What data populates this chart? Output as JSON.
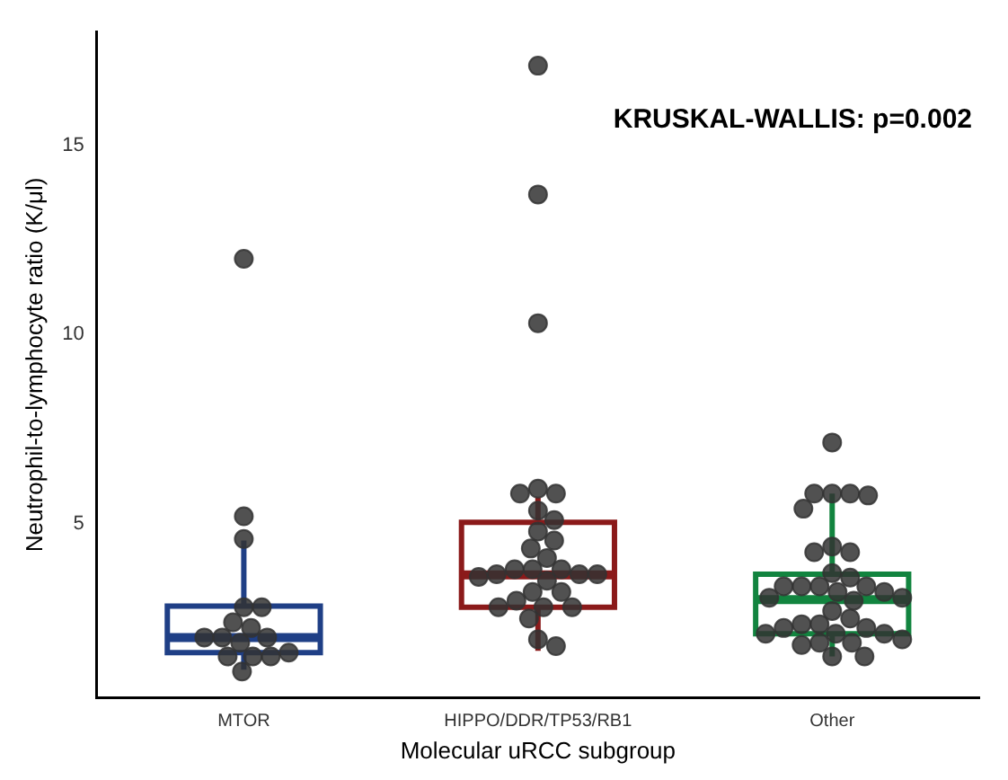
{
  "chart_data": {
    "type": "box",
    "xlabel": "Molecular uRCC subgroup",
    "ylabel": "Neutrophil-to-lymphocyte ratio (K/μl)",
    "annotations": [
      "KRUSKAL-WALLIS: p=0.002"
    ],
    "categories": [
      "MTOR",
      "HIPPO/DDR/TP53/RB1",
      "Other"
    ],
    "colors": [
      "#1f3f86",
      "#8b1a1a",
      "#12843f"
    ],
    "boxes": [
      {
        "low": 1.15,
        "q1": 1.6,
        "median": 2.0,
        "q3": 2.83,
        "high": 4.56
      },
      {
        "low": 1.65,
        "q1": 2.8,
        "median": 3.65,
        "q3": 5.04,
        "high": 5.7
      },
      {
        "low": 1.5,
        "q1": 2.1,
        "median": 3.0,
        "q3": 3.67,
        "high": 5.8
      }
    ],
    "series": [
      {
        "type": "scatter",
        "color": "#333333",
        "x": [
          "MTOR",
          "MTOR",
          "MTOR",
          "MTOR",
          "MTOR",
          "MTOR",
          "MTOR",
          "MTOR",
          "MTOR",
          "MTOR",
          "MTOR",
          "MTOR",
          "MTOR",
          "MTOR",
          "MTOR",
          "MTOR",
          "HIPPO/DDR/TP53/RB1",
          "HIPPO/DDR/TP53/RB1",
          "HIPPO/DDR/TP53/RB1",
          "HIPPO/DDR/TP53/RB1",
          "HIPPO/DDR/TP53/RB1",
          "HIPPO/DDR/TP53/RB1",
          "HIPPO/DDR/TP53/RB1",
          "HIPPO/DDR/TP53/RB1",
          "HIPPO/DDR/TP53/RB1",
          "HIPPO/DDR/TP53/RB1",
          "HIPPO/DDR/TP53/RB1",
          "HIPPO/DDR/TP53/RB1",
          "HIPPO/DDR/TP53/RB1",
          "HIPPO/DDR/TP53/RB1",
          "HIPPO/DDR/TP53/RB1",
          "HIPPO/DDR/TP53/RB1",
          "HIPPO/DDR/TP53/RB1",
          "HIPPO/DDR/TP53/RB1",
          "HIPPO/DDR/TP53/RB1",
          "HIPPO/DDR/TP53/RB1",
          "HIPPO/DDR/TP53/RB1",
          "HIPPO/DDR/TP53/RB1",
          "HIPPO/DDR/TP53/RB1",
          "HIPPO/DDR/TP53/RB1",
          "HIPPO/DDR/TP53/RB1",
          "HIPPO/DDR/TP53/RB1",
          "HIPPO/DDR/TP53/RB1",
          "HIPPO/DDR/TP53/RB1",
          "HIPPO/DDR/TP53/RB1",
          "Other",
          "Other",
          "Other",
          "Other",
          "Other",
          "Other",
          "Other",
          "Other",
          "Other",
          "Other",
          "Other",
          "Other",
          "Other",
          "Other",
          "Other",
          "Other",
          "Other",
          "Other",
          "Other",
          "Other",
          "Other",
          "Other",
          "Other",
          "Other",
          "Other",
          "Other",
          "Other",
          "Other",
          "Other",
          "Other",
          "Other",
          "Other",
          "Other",
          "Other",
          "Other"
        ],
        "values": [
          12.0,
          5.2,
          4.6,
          2.8,
          2.8,
          2.4,
          2.25,
          2.0,
          2.0,
          2.0,
          1.86,
          1.5,
          1.5,
          1.5,
          1.6,
          1.1,
          17.1,
          13.7,
          10.3,
          5.93,
          5.8,
          5.8,
          5.35,
          5.1,
          4.8,
          4.56,
          4.35,
          4.1,
          3.8,
          3.8,
          3.8,
          3.67,
          3.67,
          3.67,
          3.6,
          3.5,
          3.2,
          3.2,
          2.97,
          2.8,
          2.8,
          2.8,
          2.5,
          1.95,
          1.77,
          7.15,
          5.8,
          5.8,
          5.8,
          5.75,
          5.4,
          4.4,
          4.25,
          4.25,
          3.7,
          3.58,
          3.35,
          3.35,
          3.35,
          3.35,
          3.2,
          3.2,
          3.05,
          3.05,
          2.97,
          2.7,
          2.5,
          2.35,
          2.35,
          2.25,
          2.25,
          2.1,
          2.1,
          2.1,
          1.95,
          1.86,
          1.86,
          1.8,
          1.5,
          1.5
        ]
      }
    ],
    "ylim": [
      0.4,
      18
    ],
    "yticks": [
      5,
      10,
      15
    ],
    "grid": false,
    "legend": false,
    "marker": "circle"
  }
}
